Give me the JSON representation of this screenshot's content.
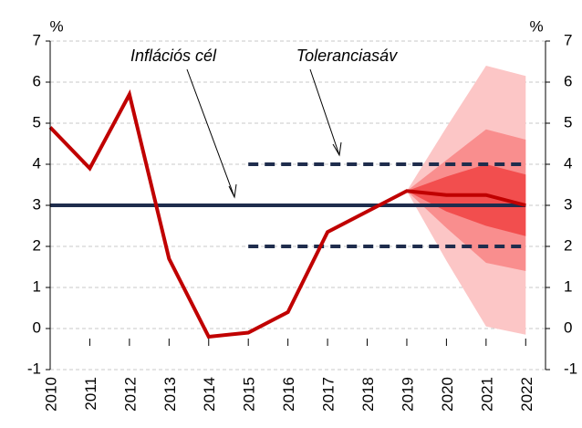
{
  "chart_data": {
    "type": "line",
    "y_unit_left": "%",
    "y_unit_right": "%",
    "annotations": [
      "Inflációs cél",
      "Toleranciasáv"
    ],
    "x": [
      2010,
      2011,
      2012,
      2013,
      2014,
      2015,
      2016,
      2017,
      2018,
      2019,
      2020,
      2021,
      2022
    ],
    "xlim": [
      2010,
      2022.5
    ],
    "xticks": [
      2010,
      2011,
      2012,
      2013,
      2014,
      2015,
      2016,
      2017,
      2018,
      2019,
      2020,
      2021,
      2022
    ],
    "ylim": [
      -1,
      7
    ],
    "yticks": [
      -1,
      0,
      1,
      2,
      3,
      4,
      5,
      6,
      7
    ],
    "y2lim": [
      -1,
      7
    ],
    "y2ticks": [
      -1,
      0,
      1,
      2,
      3,
      4,
      5,
      6,
      7
    ],
    "grid": true,
    "bands": [
      {
        "color": "#fcc6c6",
        "upper": [
          null,
          null,
          null,
          null,
          null,
          null,
          null,
          null,
          null,
          3.35,
          4.9,
          6.4,
          6.15
        ],
        "lower": [
          null,
          null,
          null,
          null,
          null,
          null,
          null,
          null,
          null,
          3.35,
          1.65,
          0.05,
          -0.15
        ]
      },
      {
        "color": "#f98e8e",
        "upper": [
          null,
          null,
          null,
          null,
          null,
          null,
          null,
          null,
          null,
          3.35,
          4.1,
          4.85,
          4.6
        ],
        "lower": [
          null,
          null,
          null,
          null,
          null,
          null,
          null,
          null,
          null,
          3.35,
          2.45,
          1.6,
          1.4
        ]
      },
      {
        "color": "#f24e4e",
        "upper": [
          null,
          null,
          null,
          null,
          null,
          null,
          null,
          null,
          null,
          3.35,
          3.7,
          4.0,
          3.75
        ],
        "lower": [
          null,
          null,
          null,
          null,
          null,
          null,
          null,
          null,
          null,
          3.35,
          2.85,
          2.5,
          2.25
        ]
      }
    ],
    "series": [
      {
        "color": "#1f2d4d",
        "style": "solid",
        "width": 4,
        "values": [
          3,
          3,
          3,
          3,
          3,
          3,
          3,
          3,
          3,
          3,
          3,
          3,
          3
        ]
      },
      {
        "color": "#1f2d4d",
        "style": "dashed",
        "width": 4,
        "values": [
          null,
          null,
          null,
          null,
          null,
          4,
          4,
          4,
          4,
          4,
          4,
          4,
          4
        ]
      },
      {
        "color": "#1f2d4d",
        "style": "dashed",
        "width": 4,
        "values": [
          null,
          null,
          null,
          null,
          null,
          2,
          2,
          2,
          2,
          2,
          2,
          2,
          2
        ]
      },
      {
        "color": "#c00000",
        "style": "solid",
        "width": 4,
        "values": [
          4.9,
          3.9,
          5.7,
          1.7,
          -0.2,
          -0.1,
          0.4,
          2.35,
          2.85,
          3.35,
          3.25,
          3.25,
          3.0
        ]
      }
    ]
  }
}
